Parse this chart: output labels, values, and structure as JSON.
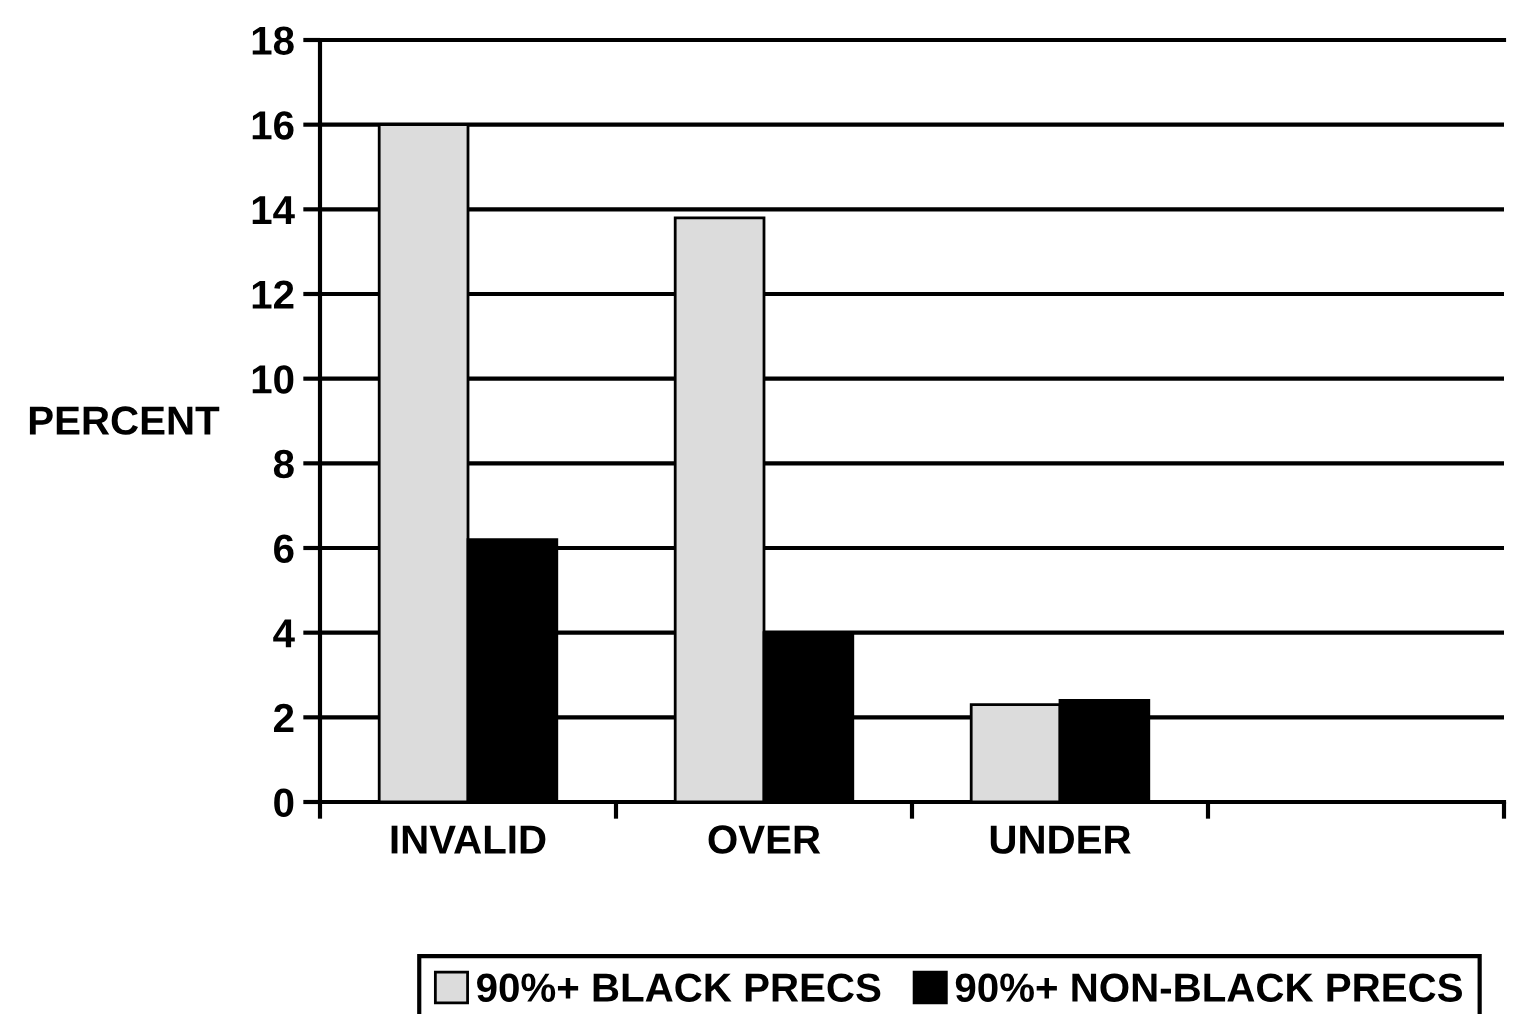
{
  "chart_data": {
    "type": "bar",
    "ylabel": "PERCENT",
    "categories": [
      "INVALID",
      "OVER",
      "UNDER",
      null
    ],
    "series": [
      {
        "name": "90%+ BLACK PRECS",
        "color": "#dcdcdc",
        "values": [
          16,
          13.8,
          2.3,
          null
        ]
      },
      {
        "name": "90%+ NON-BLACK PRECS",
        "color": "#000000",
        "values": [
          6.2,
          4,
          2.4,
          null
        ]
      }
    ],
    "ylim": [
      0,
      18
    ],
    "yticks": [
      0,
      2,
      4,
      6,
      8,
      10,
      12,
      14,
      16,
      18
    ],
    "grid": "y",
    "legend": "bottom"
  }
}
